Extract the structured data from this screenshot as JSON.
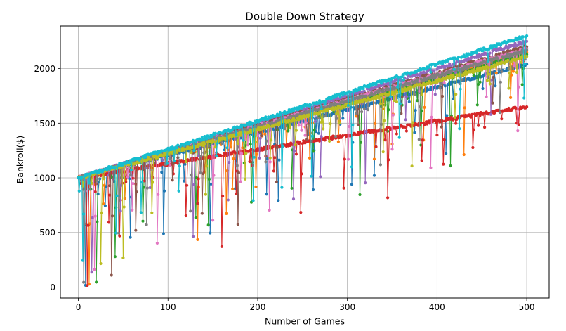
{
  "chart_data": {
    "type": "line",
    "title": "Double Down Strategy",
    "xlabel": "Number of Games",
    "ylabel": "Bankroll($)",
    "xlim": [
      -20,
      525
    ],
    "ylim": [
      -100,
      2390
    ],
    "xticks": [
      0,
      100,
      200,
      300,
      400,
      500
    ],
    "yticks": [
      0,
      500,
      1000,
      1500,
      2000
    ],
    "grid": true,
    "legend": "none",
    "x_range": [
      0,
      500
    ],
    "start_value": 1000,
    "series": [
      {
        "color": "#1f77b4",
        "end_value": 2040,
        "min_dip": 0,
        "dip_games": [
          8,
          22,
          30,
          58,
          95,
          118,
          147,
          175,
          210,
          223,
          262,
          305,
          330,
          375,
          410
        ]
      },
      {
        "color": "#ff7f0e",
        "end_value": 2150,
        "min_dip": 0,
        "dip_games": [
          12,
          28,
          52,
          133,
          165,
          172,
          198,
          232,
          258,
          290,
          330,
          350,
          385,
          430,
          482
        ]
      },
      {
        "color": "#2ca02c",
        "end_value": 2130,
        "min_dip": 0,
        "dip_games": [
          20,
          41,
          72,
          131,
          145,
          185,
          193,
          238,
          262,
          314,
          345,
          382,
          415,
          445,
          495
        ]
      },
      {
        "color": "#d62728",
        "end_value": 1650,
        "min_dip": 0,
        "dip_games": [
          10,
          34,
          46,
          120,
          133,
          160,
          176,
          218,
          248,
          296,
          345,
          383,
          407,
          440,
          500
        ]
      },
      {
        "color": "#9467bd",
        "end_value": 2250,
        "min_dip": 100,
        "dip_games": [
          15,
          47,
          80,
          128,
          167,
          202,
          240,
          270,
          320,
          365,
          398,
          460
        ]
      },
      {
        "color": "#8c564b",
        "end_value": 2200,
        "min_dip": 20,
        "dip_games": [
          37,
          64,
          105,
          138,
          178,
          221,
          255,
          312,
          360,
          405,
          462
        ]
      },
      {
        "color": "#e377c2",
        "end_value": 2180,
        "min_dip": 120,
        "dip_games": [
          18,
          60,
          88,
          150,
          181,
          213,
          253,
          301,
          350,
          393,
          455,
          490
        ]
      },
      {
        "color": "#7f7f7f",
        "end_value": 2170,
        "min_dip": 30,
        "dip_games": [
          6,
          45,
          76,
          125,
          136,
          177,
          209,
          287,
          337,
          380,
          470
        ]
      },
      {
        "color": "#bcbd22",
        "end_value": 2110,
        "min_dip": 160,
        "dip_games": [
          25,
          50,
          82,
          142,
          186,
          214,
          242,
          280,
          340,
          372,
          420,
          480
        ]
      },
      {
        "color": "#17becf",
        "end_value": 2300,
        "min_dip": 230,
        "dip_games": [
          5,
          42,
          70,
          112,
          154,
          195,
          227,
          260,
          305,
          358,
          425,
          497
        ]
      }
    ]
  }
}
